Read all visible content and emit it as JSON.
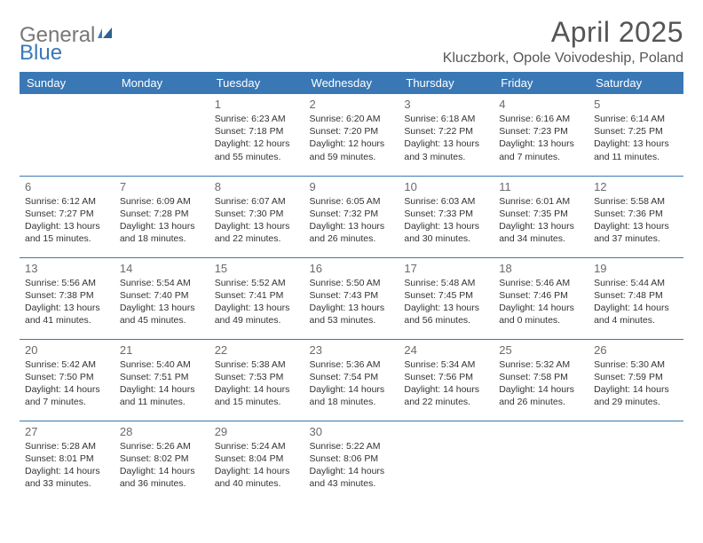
{
  "logo": {
    "general": "General",
    "blue": "Blue"
  },
  "header": {
    "month_title": "April 2025",
    "location": "Kluczbork, Opole Voivodeship, Poland"
  },
  "colors": {
    "header_bg": "#3a78b5",
    "header_text": "#ffffff",
    "body_text": "#333333",
    "muted_text": "#555555",
    "rule": "#3a78b5"
  },
  "day_names": [
    "Sunday",
    "Monday",
    "Tuesday",
    "Wednesday",
    "Thursday",
    "Friday",
    "Saturday"
  ],
  "weeks": [
    [
      null,
      null,
      {
        "n": "1",
        "sr": "6:23 AM",
        "ss": "7:18 PM",
        "dl": "12 hours and 55 minutes."
      },
      {
        "n": "2",
        "sr": "6:20 AM",
        "ss": "7:20 PM",
        "dl": "12 hours and 59 minutes."
      },
      {
        "n": "3",
        "sr": "6:18 AM",
        "ss": "7:22 PM",
        "dl": "13 hours and 3 minutes."
      },
      {
        "n": "4",
        "sr": "6:16 AM",
        "ss": "7:23 PM",
        "dl": "13 hours and 7 minutes."
      },
      {
        "n": "5",
        "sr": "6:14 AM",
        "ss": "7:25 PM",
        "dl": "13 hours and 11 minutes."
      }
    ],
    [
      {
        "n": "6",
        "sr": "6:12 AM",
        "ss": "7:27 PM",
        "dl": "13 hours and 15 minutes."
      },
      {
        "n": "7",
        "sr": "6:09 AM",
        "ss": "7:28 PM",
        "dl": "13 hours and 18 minutes."
      },
      {
        "n": "8",
        "sr": "6:07 AM",
        "ss": "7:30 PM",
        "dl": "13 hours and 22 minutes."
      },
      {
        "n": "9",
        "sr": "6:05 AM",
        "ss": "7:32 PM",
        "dl": "13 hours and 26 minutes."
      },
      {
        "n": "10",
        "sr": "6:03 AM",
        "ss": "7:33 PM",
        "dl": "13 hours and 30 minutes."
      },
      {
        "n": "11",
        "sr": "6:01 AM",
        "ss": "7:35 PM",
        "dl": "13 hours and 34 minutes."
      },
      {
        "n": "12",
        "sr": "5:58 AM",
        "ss": "7:36 PM",
        "dl": "13 hours and 37 minutes."
      }
    ],
    [
      {
        "n": "13",
        "sr": "5:56 AM",
        "ss": "7:38 PM",
        "dl": "13 hours and 41 minutes."
      },
      {
        "n": "14",
        "sr": "5:54 AM",
        "ss": "7:40 PM",
        "dl": "13 hours and 45 minutes."
      },
      {
        "n": "15",
        "sr": "5:52 AM",
        "ss": "7:41 PM",
        "dl": "13 hours and 49 minutes."
      },
      {
        "n": "16",
        "sr": "5:50 AM",
        "ss": "7:43 PM",
        "dl": "13 hours and 53 minutes."
      },
      {
        "n": "17",
        "sr": "5:48 AM",
        "ss": "7:45 PM",
        "dl": "13 hours and 56 minutes."
      },
      {
        "n": "18",
        "sr": "5:46 AM",
        "ss": "7:46 PM",
        "dl": "14 hours and 0 minutes."
      },
      {
        "n": "19",
        "sr": "5:44 AM",
        "ss": "7:48 PM",
        "dl": "14 hours and 4 minutes."
      }
    ],
    [
      {
        "n": "20",
        "sr": "5:42 AM",
        "ss": "7:50 PM",
        "dl": "14 hours and 7 minutes."
      },
      {
        "n": "21",
        "sr": "5:40 AM",
        "ss": "7:51 PM",
        "dl": "14 hours and 11 minutes."
      },
      {
        "n": "22",
        "sr": "5:38 AM",
        "ss": "7:53 PM",
        "dl": "14 hours and 15 minutes."
      },
      {
        "n": "23",
        "sr": "5:36 AM",
        "ss": "7:54 PM",
        "dl": "14 hours and 18 minutes."
      },
      {
        "n": "24",
        "sr": "5:34 AM",
        "ss": "7:56 PM",
        "dl": "14 hours and 22 minutes."
      },
      {
        "n": "25",
        "sr": "5:32 AM",
        "ss": "7:58 PM",
        "dl": "14 hours and 26 minutes."
      },
      {
        "n": "26",
        "sr": "5:30 AM",
        "ss": "7:59 PM",
        "dl": "14 hours and 29 minutes."
      }
    ],
    [
      {
        "n": "27",
        "sr": "5:28 AM",
        "ss": "8:01 PM",
        "dl": "14 hours and 33 minutes."
      },
      {
        "n": "28",
        "sr": "5:26 AM",
        "ss": "8:02 PM",
        "dl": "14 hours and 36 minutes."
      },
      {
        "n": "29",
        "sr": "5:24 AM",
        "ss": "8:04 PM",
        "dl": "14 hours and 40 minutes."
      },
      {
        "n": "30",
        "sr": "5:22 AM",
        "ss": "8:06 PM",
        "dl": "14 hours and 43 minutes."
      },
      null,
      null,
      null
    ]
  ],
  "labels": {
    "sunrise": "Sunrise:",
    "sunset": "Sunset:",
    "daylight": "Daylight:"
  }
}
